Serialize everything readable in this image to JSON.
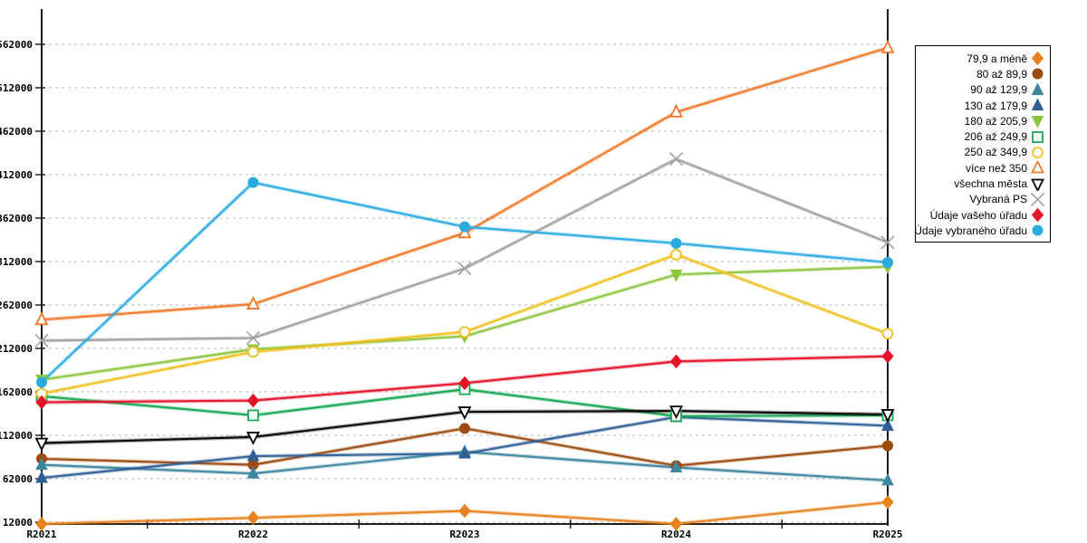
{
  "chart_data": {
    "type": "line",
    "categories": [
      "R2021",
      "R2022",
      "R2023",
      "R2024",
      "R2025"
    ],
    "y_ticks": [
      12000,
      62000,
      112000,
      162000,
      212000,
      262000,
      312000,
      362000,
      412000,
      462000,
      512000,
      562000
    ],
    "ylim": [
      12000,
      562000
    ],
    "grid": "horizontal-dashed",
    "legend_position": "outside-top-right",
    "colors": {
      "axis": "#000000",
      "gridline": "#c4c4c4",
      "background": "#ffffff",
      "legend_border": "#000000"
    },
    "series": [
      {
        "name": "79,9 a méně",
        "color": "#e8821e",
        "marker": "diamond",
        "hollow": false,
        "values": [
          10000,
          17000,
          25000,
          10000,
          35000
        ]
      },
      {
        "name": "80 až 89,9",
        "color": "#9d4a0e",
        "marker": "circle",
        "hollow": false,
        "values": [
          85000,
          78000,
          120000,
          77000,
          100000
        ]
      },
      {
        "name": "90 až 129,9",
        "color": "#3e87a0",
        "marker": "triangle-up",
        "hollow": false,
        "values": [
          78000,
          68000,
          93000,
          75000,
          60000
        ]
      },
      {
        "name": "130 až 179,9",
        "color": "#2f5f95",
        "marker": "triangle-up",
        "hollow": false,
        "values": [
          63000,
          88000,
          91000,
          133000,
          123000
        ]
      },
      {
        "name": "180 až 205,9",
        "color": "#8cc63f",
        "marker": "triangle-down",
        "hollow": false,
        "values": [
          176000,
          211000,
          226000,
          297000,
          306000
        ]
      },
      {
        "name": "206 až 249,9",
        "color": "#17a854",
        "marker": "square",
        "hollow": true,
        "values": [
          157000,
          135000,
          165000,
          134000,
          135000
        ]
      },
      {
        "name": "250 až 349,9",
        "color": "#f0c01e",
        "marker": "circle",
        "hollow": true,
        "values": [
          160000,
          208000,
          231000,
          320000,
          229000
        ]
      },
      {
        "name": "více než 350",
        "color": "#f07828",
        "marker": "triangle-up",
        "hollow": true,
        "values": [
          245000,
          263000,
          345000,
          484000,
          558000
        ]
      },
      {
        "name": "všechna města",
        "color": "#000000",
        "marker": "triangle-down",
        "hollow": true,
        "values": [
          103000,
          110000,
          139000,
          140000,
          136000
        ]
      },
      {
        "name": "Vybraná PS",
        "color": "#a0a0a0",
        "marker": "x",
        "hollow": false,
        "values": [
          221000,
          224000,
          304000,
          430000,
          334000
        ]
      },
      {
        "name": "Údaje vašeho úřadu",
        "color": "#e5132a",
        "marker": "diamond",
        "hollow": false,
        "values": [
          150000,
          152000,
          172000,
          197000,
          203000
        ]
      },
      {
        "name": "Údaje vybraného úřadu",
        "color": "#29abe2",
        "marker": "circle",
        "hollow": false,
        "values": [
          173000,
          403000,
          352000,
          333000,
          311000
        ]
      }
    ]
  }
}
